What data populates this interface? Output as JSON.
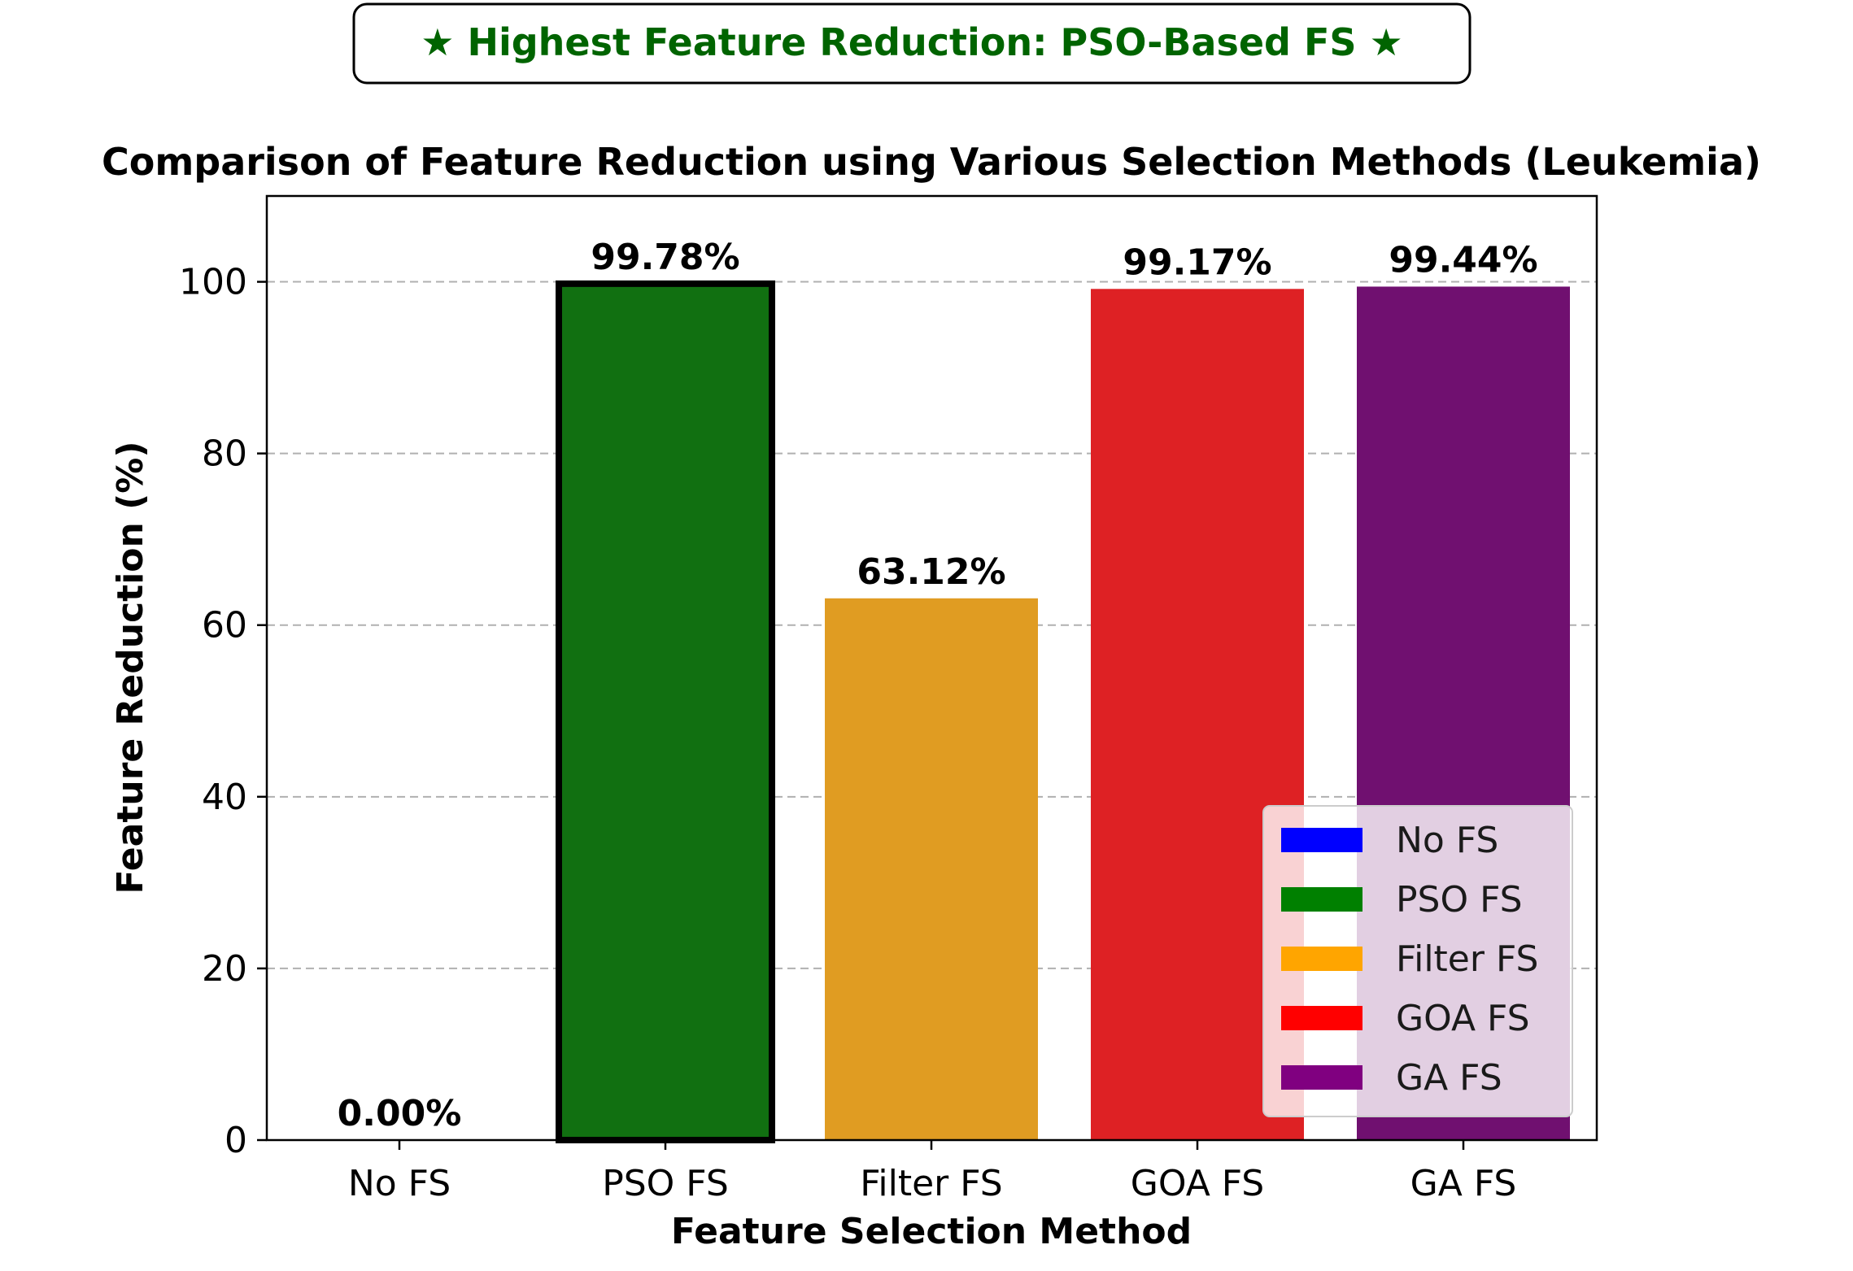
{
  "banner": {
    "text": "★ Highest Feature Reduction: PSO-Based FS ★",
    "color": "#006400"
  },
  "chart_data": {
    "type": "bar",
    "title": "Comparison of Feature Reduction using Various Selection Methods (Leukemia)",
    "xlabel": "Feature Selection Method",
    "ylabel": "Feature Reduction (%)",
    "categories": [
      "No FS",
      "PSO FS",
      "Filter FS",
      "GOA FS",
      "GA FS"
    ],
    "values": [
      0.0,
      99.78,
      63.12,
      99.17,
      99.44
    ],
    "value_labels": [
      "0.00%",
      "99.78%",
      "63.12%",
      "99.17%",
      "99.44%"
    ],
    "colors": [
      "#0000ff",
      "#117011",
      "#e09c22",
      "#de2124",
      "#701070"
    ],
    "highlight": "PSO FS",
    "ylim": [
      0,
      110
    ],
    "yticks": [
      0,
      20,
      40,
      60,
      80,
      100
    ],
    "grid": "y-dashed",
    "legend": {
      "placement": "lower-right",
      "entries": [
        {
          "label": "No FS",
          "color": "#0000ff"
        },
        {
          "label": "PSO FS",
          "color": "#008000"
        },
        {
          "label": "Filter FS",
          "color": "#ffa500"
        },
        {
          "label": "GOA FS",
          "color": "#ff0000"
        },
        {
          "label": "GA FS",
          "color": "#800080"
        }
      ]
    }
  }
}
